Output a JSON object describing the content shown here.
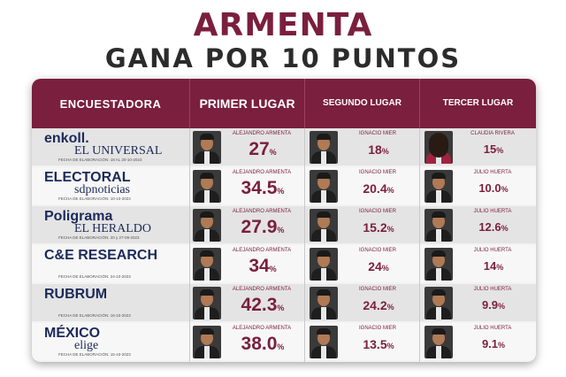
{
  "headline": "ARMENTA",
  "subheadline": "GANA POR 10 PUNTOS",
  "table": {
    "headers": {
      "pollster": "ENCUESTADORA",
      "first": "PRIMER LUGAR",
      "second": "SEGUNDO LUGAR",
      "third": "TERCER LUGAR"
    },
    "rows": [
      {
        "logo_line1": "enkoll.",
        "logo_line2": "EL UNIVERSAL",
        "date": "FECHA DE ELABORACIÓN: 18 AL 20-10-2023",
        "first_name": "ALEJANDRO ARMENTA",
        "first_pct": "27",
        "first_sym": "%",
        "second_name": "IGNACIO MIER",
        "second_pct": "18",
        "second_sym": "%",
        "third_name": "CLAUDIA RIVERA",
        "third_pct": "15",
        "third_sym": "%",
        "third_icon": "woman-portrait"
      },
      {
        "logo_line1": "ELECTORAL",
        "logo_line2": "sdpnoticias",
        "date": "FECHA DE ELABORACIÓN: 10-10-2023",
        "first_name": "ALEJANDRO ARMENTA",
        "first_pct": "34.5",
        "first_sym": "%",
        "second_name": "IGNACIO MIER",
        "second_pct": "20.4",
        "second_sym": "%",
        "third_name": "JULIO HUERTA",
        "third_pct": "10.0",
        "third_sym": "%",
        "third_icon": "man-portrait"
      },
      {
        "logo_line1": "Poligrama",
        "logo_line2": "EL HERALDO",
        "date": "FECHA DE ELABORACIÓN: 20 y 27-09-2023",
        "first_name": "ALEJANDRO ARMENTA",
        "first_pct": "27.9",
        "first_sym": "%",
        "second_name": "IGNACIO MIER",
        "second_pct": "15.2",
        "second_sym": "%",
        "third_name": "JULIO HUERTA",
        "third_pct": "12.6",
        "third_sym": "%",
        "third_icon": "man-portrait"
      },
      {
        "logo_line1": "C&E RESEARCH",
        "logo_line2": "",
        "date": "FECHA DE ELABORACIÓN: 24-10-2023",
        "first_name": "ALEJANDRO ARMENTA",
        "first_pct": "34",
        "first_sym": "%",
        "second_name": "IGNACIO MIER",
        "second_pct": "24",
        "second_sym": "%",
        "third_name": "JULIO HUERTA",
        "third_pct": "14",
        "third_sym": "%",
        "third_icon": "man-portrait"
      },
      {
        "logo_line1": "RUBRUM",
        "logo_line2": "",
        "date": "FECHA DE ELABORACIÓN: 16-10-2023",
        "first_name": "ALEJANDRO ARMENTA",
        "first_pct": "42.3",
        "first_sym": "%",
        "second_name": "IGNACIO MIER",
        "second_pct": "24.2",
        "second_sym": "%",
        "third_name": "JULIO HUERTA",
        "third_pct": "9.9",
        "third_sym": "%",
        "third_icon": "man-portrait"
      },
      {
        "logo_line1": "MÉXICO",
        "logo_line2": "elige",
        "date": "FECHA DE ELABORACIÓN: 15-10-2023",
        "first_name": "ALEJANDRO ARMENTA",
        "first_pct": "38.0",
        "first_sym": "%",
        "second_name": "IGNACIO MIER",
        "second_pct": "13.5",
        "second_sym": "%",
        "third_name": "JULIO HUERTA",
        "third_pct": "9.1",
        "third_sym": "%",
        "third_icon": "man-portrait"
      }
    ]
  },
  "colors": {
    "brand": "#7a1f3d",
    "dark_text": "#2b2b2b",
    "navy_logo": "#1b2a5a"
  }
}
